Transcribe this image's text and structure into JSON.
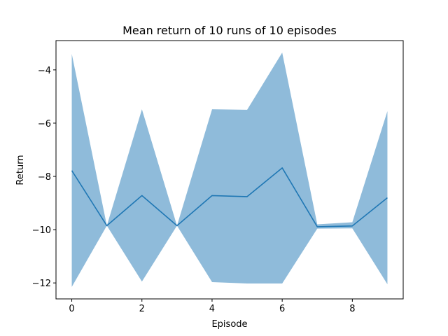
{
  "chart_data": {
    "type": "line",
    "title": "Mean return of 10 runs of 10 episodes",
    "xlabel": "Episode",
    "ylabel": "Return",
    "x": [
      0,
      1,
      2,
      3,
      4,
      5,
      6,
      7,
      8,
      9
    ],
    "series": [
      {
        "values": [
          -7.78,
          -9.85,
          -8.72,
          -9.85,
          -8.72,
          -8.76,
          -7.68,
          -9.89,
          -9.86,
          -8.8
        ],
        "upper": [
          -3.4,
          -9.85,
          -5.48,
          -9.85,
          -5.48,
          -5.5,
          -3.35,
          -9.8,
          -9.72,
          -5.55
        ],
        "lower": [
          -12.15,
          -9.85,
          -11.95,
          -9.85,
          -11.97,
          -12.02,
          -12.02,
          -9.96,
          -9.95,
          -12.05
        ],
        "color": "#1f77b4",
        "fill_color": "#8fbbda"
      }
    ],
    "xlim": [
      -0.45,
      9.45
    ],
    "ylim": [
      -12.6,
      -2.9
    ],
    "xticks": [
      "0",
      "2",
      "4",
      "6",
      "8"
    ],
    "yticks": [
      "−4",
      "−6",
      "−8",
      "−10",
      "−12"
    ],
    "grid": false
  }
}
